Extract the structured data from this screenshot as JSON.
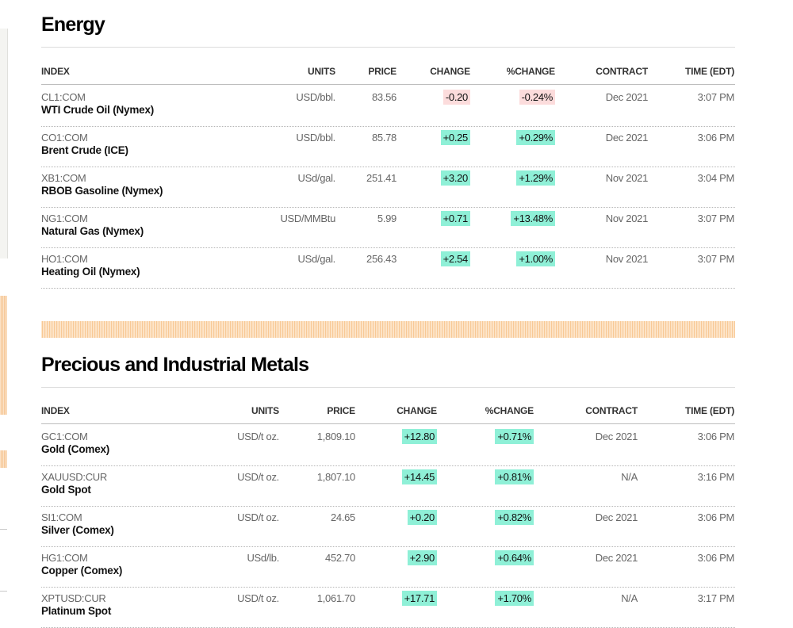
{
  "energy": {
    "title": "Energy",
    "headers": {
      "index": "INDEX",
      "units": "UNITS",
      "price": "PRICE",
      "change": "CHANGE",
      "pct_change": "%CHANGE",
      "contract": "CONTRACT",
      "time": "TIME (EDT)"
    },
    "rows": [
      {
        "ticker": "CL1:COM",
        "name": "WTI Crude Oil (Nymex)",
        "units": "USD/bbl.",
        "price": "83.56",
        "change": "-0.20",
        "pct_change": "-0.24%",
        "direction": "down",
        "contract": "Dec 2021",
        "time": "3:07 PM"
      },
      {
        "ticker": "CO1:COM",
        "name": "Brent Crude (ICE)",
        "units": "USD/bbl.",
        "price": "85.78",
        "change": "+0.25",
        "pct_change": "+0.29%",
        "direction": "up",
        "contract": "Dec 2021",
        "time": "3:06 PM"
      },
      {
        "ticker": "XB1:COM",
        "name": "RBOB Gasoline (Nymex)",
        "units": "USd/gal.",
        "price": "251.41",
        "change": "+3.20",
        "pct_change": "+1.29%",
        "direction": "up",
        "contract": "Nov 2021",
        "time": "3:04 PM"
      },
      {
        "ticker": "NG1:COM",
        "name": "Natural Gas (Nymex)",
        "units": "USD/MMBtu",
        "price": "5.99",
        "change": "+0.71",
        "pct_change": "+13.48%",
        "direction": "up",
        "contract": "Nov 2021",
        "time": "3:07 PM"
      },
      {
        "ticker": "HO1:COM",
        "name": "Heating Oil (Nymex)",
        "units": "USd/gal.",
        "price": "256.43",
        "change": "+2.54",
        "pct_change": "+1.00%",
        "direction": "up",
        "contract": "Nov 2021",
        "time": "3:07 PM"
      }
    ]
  },
  "metals": {
    "title": "Precious and Industrial Metals",
    "headers": {
      "index": "INDEX",
      "units": "UNITS",
      "price": "PRICE",
      "change": "CHANGE",
      "pct_change": "%CHANGE",
      "contract": "CONTRACT",
      "time": "TIME (EDT)"
    },
    "rows": [
      {
        "ticker": "GC1:COM",
        "name": "Gold (Comex)",
        "units": "USD/t oz.",
        "price": "1,809.10",
        "change": "+12.80",
        "pct_change": "+0.71%",
        "direction": "up",
        "contract": "Dec 2021",
        "time": "3:06 PM"
      },
      {
        "ticker": "XAUUSD:CUR",
        "name": "Gold Spot",
        "units": "USD/t oz.",
        "price": "1,807.10",
        "change": "+14.45",
        "pct_change": "+0.81%",
        "direction": "up",
        "contract": "N/A",
        "time": "3:16 PM"
      },
      {
        "ticker": "SI1:COM",
        "name": "Silver (Comex)",
        "units": "USD/t oz.",
        "price": "24.65",
        "change": "+0.20",
        "pct_change": "+0.82%",
        "direction": "up",
        "contract": "Dec 2021",
        "time": "3:06 PM"
      },
      {
        "ticker": "HG1:COM",
        "name": "Copper (Comex)",
        "units": "USd/lb.",
        "price": "452.70",
        "change": "+2.90",
        "pct_change": "+0.64%",
        "direction": "up",
        "contract": "Dec 2021",
        "time": "3:06 PM"
      },
      {
        "ticker": "XPTUSD:CUR",
        "name": "Platinum Spot",
        "units": "USD/t oz.",
        "price": "1,061.70",
        "change": "+17.71",
        "pct_change": "+1.70%",
        "direction": "up",
        "contract": "N/A",
        "time": "3:17 PM"
      }
    ]
  },
  "colors": {
    "positive": "#8ff0d7",
    "negative": "#fcdcdc"
  }
}
